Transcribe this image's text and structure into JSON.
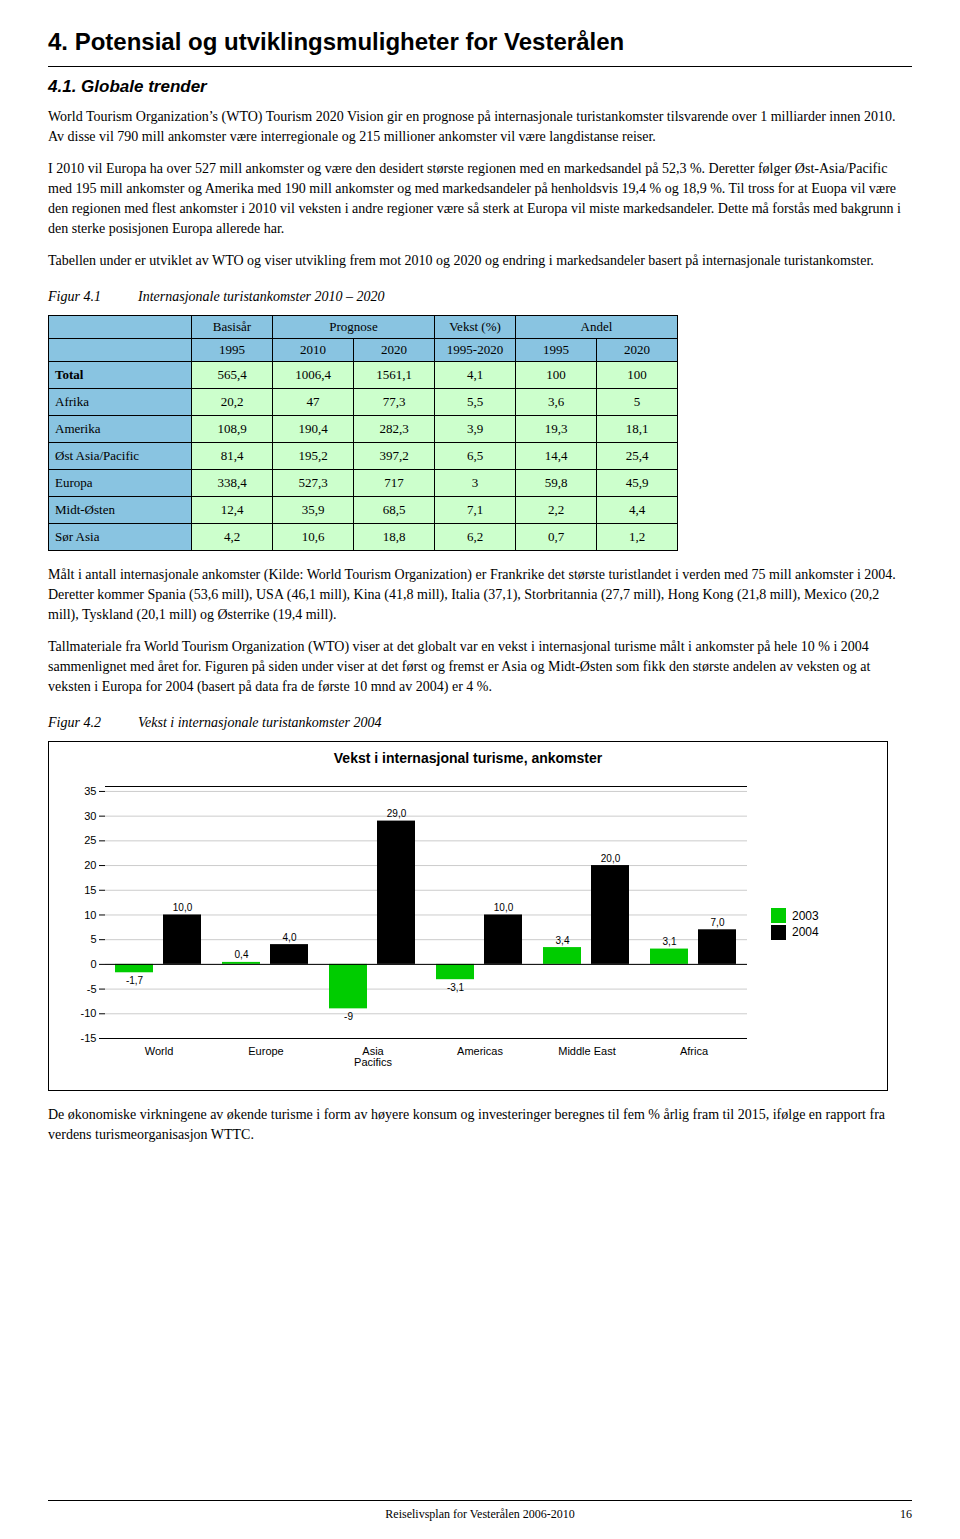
{
  "page": {
    "title": "4. Potensial og utviklingsmuligheter for Vesterålen",
    "section_title": "4.1. Globale trender",
    "paragraphs_before_table": [
      "World Tourism Organization’s (WTO) Tourism 2020 Vision gir en prognose på internasjonale turistankomster tilsvarende over 1 milliarder innen 2010. Av disse vil 790 mill ankomster være interregionale og 215 millioner ankomster vil være langdistanse reiser.",
      "I 2010 vil Europa ha over 527 mill ankomster og være den desidert største regionen med en markedsandel på 52,3 %. Deretter følger Øst-Asia/Pacific med 195 mill ankomster og Amerika med 190 mill ankomster og med markedsandeler på henholdsvis 19,4 % og 18,9 %. Til tross for at Euopa vil være den regionen med flest ankomster i 2010 vil veksten i andre regioner være så sterk at Europa vil miste markedsandeler. Dette må forstås med bakgrunn i den sterke posisjonen Europa allerede har.",
      "Tabellen under er utviklet av WTO og viser utvikling frem mot 2010 og 2020 og endring i markedsandeler basert på internasjonale turistankomster."
    ],
    "fig1_label": "Figur 4.1",
    "fig1_title": "Internasjonale turistankomster 2010 – 2020",
    "table_header_top": [
      "Basisår",
      "Prognose",
      "Vekst (%)",
      "Andel"
    ],
    "table_header_bottom": [
      "1995",
      "2010",
      "2020",
      "1995-2020",
      "1995",
      "2020"
    ],
    "table_rows": [
      [
        "Total",
        "565,4",
        "1006,4",
        "1561,1",
        "4,1",
        "100",
        "100"
      ],
      [
        "Afrika",
        "20,2",
        "47",
        "77,3",
        "5,5",
        "3,6",
        "5"
      ],
      [
        "Amerika",
        "108,9",
        "190,4",
        "282,3",
        "3,9",
        "19,3",
        "18,1"
      ],
      [
        "Øst Asia/Pacific",
        "81,4",
        "195,2",
        "397,2",
        "6,5",
        "14,4",
        "25,4"
      ],
      [
        "Europa",
        "338,4",
        "527,3",
        "717",
        "3",
        "59,8",
        "45,9"
      ],
      [
        "Midt-Østen",
        "12,4",
        "35,9",
        "68,5",
        "7,1",
        "2,2",
        "4,4"
      ],
      [
        "Sør Asia",
        "4,2",
        "10,6",
        "18,8",
        "6,2",
        "0,7",
        "1,2"
      ]
    ],
    "paragraphs_after_table": [
      "Målt i antall internasjonale ankomster (Kilde: World Tourism Organization) er Frankrike det største turistlandet i verden med 75 mill ankomster i 2004. Deretter kommer Spania (53,6 mill), USA (46,1 mill), Kina (41,8 mill), Italia (37,1), Storbritannia (27,7 mill), Hong Kong (21,8 mill), Mexico (20,2 mill), Tyskland (20,1 mill) og Østerrike (19,4 mill).",
      "Tallmateriale fra World Tourism Organization (WTO) viser at det globalt var en vekst i internasjonal turisme målt i ankomster på hele 10 % i 2004 sammenlignet med året for. Figuren på siden under viser at  det først og fremst er Asia og Midt-Østen som fikk den største andelen av veksten og at veksten i Europa for 2004 (basert på data fra de første 10 mnd av 2004) er 4 %."
    ],
    "fig2_label": "Figur 4.2",
    "fig2_title": "Vekst i internasjonale turistankomster 2004",
    "paragraphs_after_chart": [
      "De økonomiske virkningene av økende turisme i form av høyere konsum og investeringer beregnes til fem  % årlig fram til 2015, ifølge en rapport fra verdens turismeorganisasjon WTTC."
    ],
    "footer_text": "Reiselivsplan for Vesterålen 2006-2010",
    "footer_page": "16"
  },
  "chart_data": {
    "type": "bar",
    "title": "Vekst i internasjonal turisme, ankomster",
    "categories": [
      "World",
      "Europe",
      "Asia\nPacifics",
      "Americas",
      "Middle East",
      "Africa"
    ],
    "series": [
      {
        "name": "2003",
        "color": "#00CC00",
        "values": [
          -1.7,
          0.4,
          -9.0,
          -3.1,
          3.4,
          3.1
        ],
        "value_labels": [
          "-1,7",
          "0,4",
          "-9",
          "-3,1",
          "3,4",
          "3,1"
        ]
      },
      {
        "name": "2004",
        "color": "#000000",
        "values": [
          10.0,
          4.0,
          29.0,
          10.0,
          20.0,
          7.0
        ],
        "value_labels": [
          "10,0",
          "4,0",
          "29,0",
          "10,0",
          "20,0",
          "7,0"
        ]
      }
    ],
    "ylim": [
      -15,
      36
    ],
    "yticks": [
      -15,
      -10,
      -5,
      0,
      5,
      10,
      15,
      20,
      25,
      30,
      35
    ],
    "grid": true,
    "legend": "right",
    "data_labels": true
  }
}
